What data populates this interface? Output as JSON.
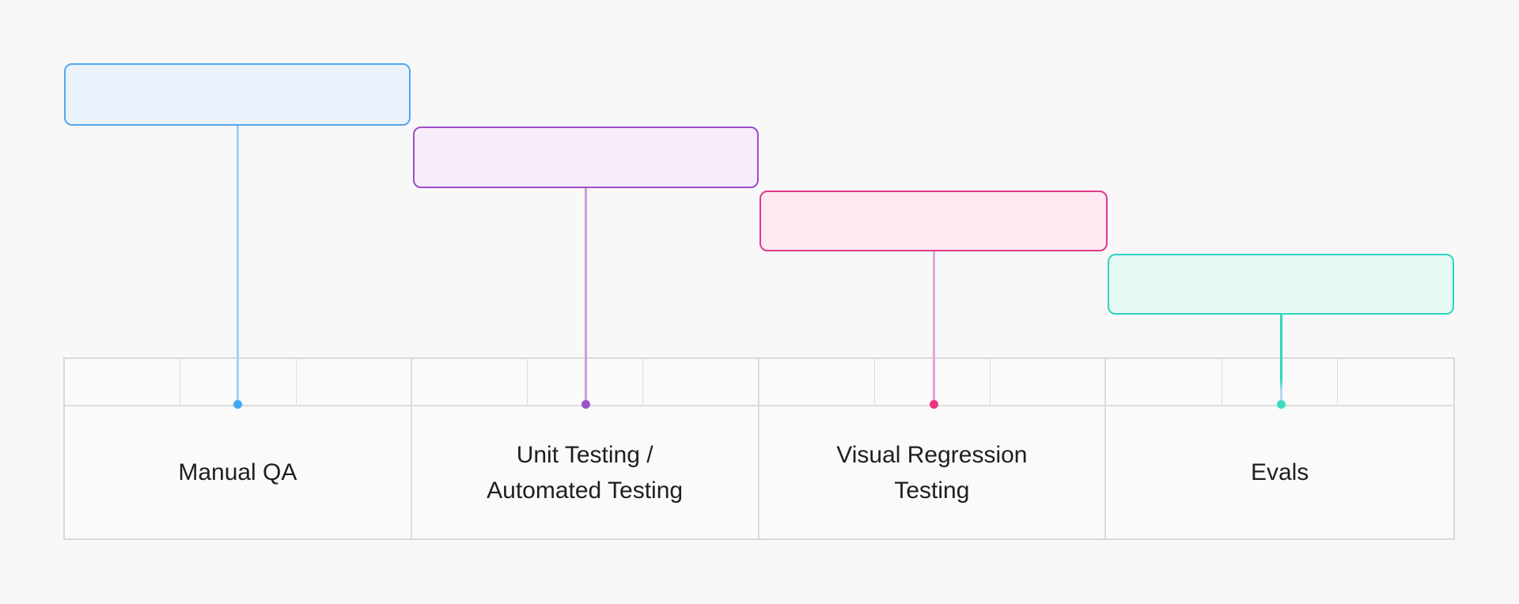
{
  "page": {
    "background": "#f8f8f8"
  },
  "diagram": {
    "type": "cascading-stage-timeline",
    "stages": [
      {
        "name": "manual-qa",
        "label": "Manual QA",
        "label_lines": [
          "Manual QA"
        ],
        "box_text": "",
        "colors": {
          "fill": "#eaf2fc",
          "border": "#55a8ef",
          "line": "#a3d0f4",
          "dot": "#3fa9f5"
        }
      },
      {
        "name": "unit-automated-testing",
        "label": "Unit Testing / Automated Testing",
        "label_lines": [
          "Unit Testing /",
          "Automated Testing"
        ],
        "box_text": "",
        "colors": {
          "fill": "#f7ecfa",
          "border": "#9d4ec9",
          "line": "#cf9ede",
          "dot": "#9b55c8"
        }
      },
      {
        "name": "visual-regression-testing",
        "label": "Visual Regression Testing",
        "label_lines": [
          "Visual Regression",
          "Testing"
        ],
        "box_text": "",
        "colors": {
          "fill": "#fde9f2",
          "border": "#e03a8c",
          "line": "#dfa5d8",
          "dot": "#e93480"
        }
      },
      {
        "name": "evals",
        "label": "Evals",
        "label_lines": [
          "Evals"
        ],
        "box_text": "",
        "colors": {
          "fill": "#e5faf4",
          "border": "#2ed3bf",
          "line": "#2fd6b8",
          "line_end": "#b5d9f7",
          "dot": "#3edcbc"
        }
      }
    ],
    "table": {
      "columns": 4,
      "subcells_per_column": 3,
      "border_color": "#dcdcdc"
    }
  }
}
